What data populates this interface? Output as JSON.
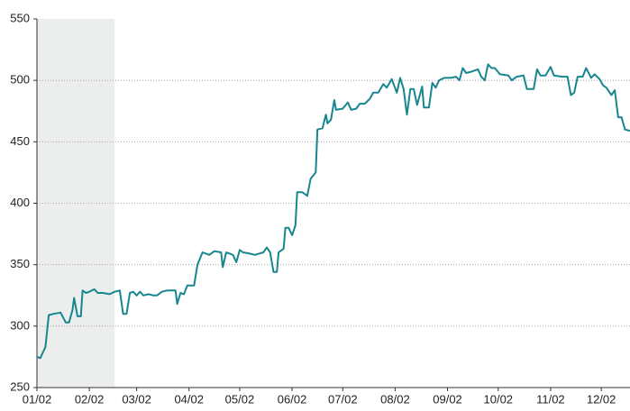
{
  "chart_data": {
    "type": "line",
    "x": [
      0,
      2,
      5,
      7,
      10,
      14,
      17,
      19,
      21,
      22,
      24,
      26,
      27,
      29,
      31,
      34,
      36,
      39,
      43,
      46,
      49,
      51,
      53,
      55,
      57,
      59,
      61,
      63,
      66,
      69,
      71,
      74,
      77,
      82,
      83,
      85,
      87,
      89,
      93,
      95,
      98,
      102,
      105,
      109,
      110,
      112,
      116,
      118,
      120,
      122,
      126,
      129,
      134,
      136,
      138,
      140,
      142,
      143,
      146,
      147,
      149,
      151,
      153,
      154,
      157,
      160,
      162,
      165,
      166,
      169,
      171,
      172,
      174,
      176,
      177,
      181,
      184,
      186,
      189,
      191,
      194,
      197,
      199,
      202,
      205,
      207,
      210,
      213,
      215,
      217,
      219,
      221,
      223,
      225,
      228,
      229,
      232,
      234,
      236,
      238,
      241,
      245,
      248,
      250,
      252,
      254,
      257,
      261,
      263,
      265,
      267,
      269,
      271,
      274,
      279,
      281,
      284,
      288,
      290,
      294,
      296,
      298,
      301,
      304,
      306,
      311,
      314,
      316,
      318,
      320,
      323,
      325,
      328,
      330,
      333,
      335,
      337,
      340,
      342,
      344,
      346,
      348,
      351
    ],
    "values": [
      275,
      274,
      283,
      309,
      310,
      311,
      303,
      303,
      313,
      323,
      308,
      308,
      329,
      327,
      328,
      330,
      327,
      327,
      326,
      328,
      329,
      310,
      310,
      327,
      328,
      325,
      328,
      325,
      326,
      325,
      325,
      328,
      329,
      329,
      318,
      327,
      326,
      333,
      333,
      350,
      360,
      358,
      361,
      360,
      348,
      360,
      358,
      352,
      362,
      360,
      359,
      358,
      360,
      364,
      360,
      344,
      344,
      360,
      363,
      380,
      380,
      374,
      382,
      409,
      409,
      406,
      420,
      425,
      460,
      461,
      472,
      465,
      468,
      484,
      476,
      477,
      482,
      476,
      477,
      481,
      481,
      485,
      490,
      490,
      497,
      494,
      501,
      490,
      502,
      493,
      472,
      493,
      493,
      480,
      495,
      478,
      478,
      498,
      494,
      500,
      502,
      502,
      503,
      500,
      510,
      506,
      507,
      509,
      503,
      500,
      513,
      510,
      510,
      505,
      504,
      500,
      503,
      504,
      493,
      493,
      509,
      504,
      504,
      511,
      504,
      503,
      503,
      488,
      490,
      503,
      503,
      510,
      502,
      505,
      501,
      496,
      494,
      488,
      492,
      470,
      470,
      460,
      459
    ],
    "color": "#17868f",
    "xlim": [
      0,
      351
    ],
    "xticks": [
      {
        "value": 0,
        "label": "01/02"
      },
      {
        "value": 31,
        "label": "02/02"
      },
      {
        "value": 59,
        "label": "03/02"
      },
      {
        "value": 90,
        "label": "04/02"
      },
      {
        "value": 120,
        "label": "05/02"
      },
      {
        "value": 151,
        "label": "06/02"
      },
      {
        "value": 181,
        "label": "07/02"
      },
      {
        "value": 212,
        "label": "08/02"
      },
      {
        "value": 243,
        "label": "09/02"
      },
      {
        "value": 273,
        "label": "10/02"
      },
      {
        "value": 304,
        "label": "11/02"
      },
      {
        "value": 334,
        "label": "12/02"
      }
    ],
    "ylim": [
      250,
      550
    ],
    "yticks": [
      250,
      300,
      350,
      400,
      450,
      500,
      550
    ],
    "grid": true,
    "shaded_region": [
      0,
      46
    ]
  }
}
